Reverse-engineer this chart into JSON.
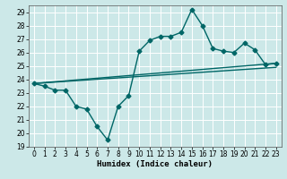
{
  "xlabel": "Humidex (Indice chaleur)",
  "background_color": "#cce8e8",
  "grid_color": "#ffffff",
  "line_color": "#006666",
  "xlim": [
    -0.5,
    23.5
  ],
  "ylim": [
    19,
    29.5
  ],
  "yticks": [
    19,
    20,
    21,
    22,
    23,
    24,
    25,
    26,
    27,
    28,
    29
  ],
  "xticks": [
    0,
    1,
    2,
    3,
    4,
    5,
    6,
    7,
    8,
    9,
    10,
    11,
    12,
    13,
    14,
    15,
    16,
    17,
    18,
    19,
    20,
    21,
    22,
    23
  ],
  "line1_x": [
    0,
    1,
    2,
    3,
    4,
    5,
    6,
    7,
    8,
    9,
    10,
    11,
    12,
    13,
    14,
    15,
    16,
    17,
    18,
    19,
    20,
    21,
    22,
    23
  ],
  "line1_y": [
    23.7,
    23.5,
    23.2,
    23.2,
    22.0,
    21.8,
    20.5,
    19.5,
    22.0,
    22.8,
    26.1,
    26.9,
    27.2,
    27.2,
    27.5,
    29.2,
    28.0,
    26.3,
    26.1,
    26.0,
    26.7,
    26.2,
    25.1,
    25.2
  ],
  "line2_x": [
    0,
    23
  ],
  "line2_y": [
    23.7,
    25.2
  ],
  "line3_x": [
    0,
    23
  ],
  "line3_y": [
    23.7,
    24.9
  ],
  "marker_size": 2.5,
  "linewidth": 1.0,
  "font_size_label": 6.5,
  "font_size_tick": 5.5
}
